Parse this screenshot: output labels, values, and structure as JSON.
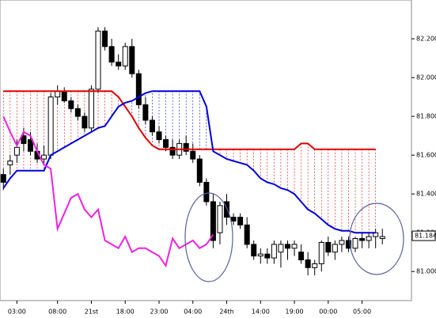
{
  "chart_data": {
    "type": "candlestick",
    "xlim": [
      -0.5,
      60.3
    ],
    "xticks": [
      {
        "value": 2,
        "label": "03:00"
      },
      {
        "value": 8,
        "label": "08:00"
      },
      {
        "value": 13,
        "label": "21st"
      },
      {
        "value": 18,
        "label": "18:00"
      },
      {
        "value": 23,
        "label": "23:00"
      },
      {
        "value": 28,
        "label": "04:00"
      },
      {
        "value": 33,
        "label": "24th"
      },
      {
        "value": 38,
        "label": "14:00"
      },
      {
        "value": 43,
        "label": "19:00"
      },
      {
        "value": 48,
        "label": "00:00"
      },
      {
        "value": 53,
        "label": "05:00"
      }
    ],
    "ylim": [
      80.85,
      82.4
    ],
    "yticks": [
      {
        "value": 81.0,
        "label": "81.000"
      },
      {
        "value": 81.2,
        "label": "81.200"
      },
      {
        "value": 81.4,
        "label": "81.400"
      },
      {
        "value": 81.6,
        "label": "81.600"
      },
      {
        "value": 81.8,
        "label": "81.800"
      },
      {
        "value": 82.0,
        "label": "82.000"
      },
      {
        "value": 82.2,
        "label": "82.200"
      }
    ],
    "current_price": 81.184,
    "up_color": "#ffffff",
    "down_color": "#000000",
    "candles": {
      "open": [
        81.5,
        81.55,
        81.6,
        81.7,
        81.68,
        81.62,
        81.58,
        81.6,
        81.9,
        81.93,
        81.88,
        81.84,
        81.8,
        81.74,
        81.94,
        82.24,
        82.16,
        82.08,
        82.06,
        82.16,
        82.02,
        81.86,
        81.78,
        81.72,
        81.68,
        81.64,
        81.6,
        81.66,
        81.62,
        81.58,
        81.46,
        81.36,
        81.2,
        81.36,
        81.28,
        81.28,
        81.24,
        81.14,
        81.08,
        81.09,
        81.07,
        81.1,
        81.14,
        81.12,
        81.1,
        81.06,
        81.02,
        81.04,
        81.15,
        81.1,
        81.14,
        81.16,
        81.12,
        81.17,
        81.16,
        81.18,
        81.17
      ],
      "high": [
        81.53,
        81.6,
        81.68,
        81.74,
        81.72,
        81.66,
        81.65,
        81.92,
        81.96,
        81.95,
        81.9,
        81.86,
        81.82,
        81.96,
        82.26,
        82.26,
        82.2,
        82.12,
        82.18,
        82.2,
        82.04,
        81.9,
        81.8,
        81.75,
        81.7,
        81.68,
        81.68,
        81.7,
        81.66,
        81.6,
        81.48,
        81.4,
        81.36,
        81.4,
        81.3,
        81.3,
        81.28,
        81.16,
        81.12,
        81.12,
        81.16,
        81.16,
        81.16,
        81.16,
        81.14,
        81.1,
        81.06,
        81.16,
        81.18,
        81.16,
        81.18,
        81.18,
        81.18,
        81.2,
        81.2,
        81.22,
        81.22
      ],
      "low": [
        81.42,
        81.5,
        81.56,
        81.62,
        81.6,
        81.56,
        81.55,
        81.58,
        81.86,
        81.87,
        81.82,
        81.78,
        81.72,
        81.72,
        81.92,
        82.14,
        82.06,
        82.04,
        82.04,
        82.0,
        81.84,
        81.76,
        81.7,
        81.66,
        81.62,
        81.58,
        81.58,
        81.6,
        81.56,
        81.44,
        81.34,
        81.12,
        81.14,
        81.24,
        81.24,
        81.22,
        81.12,
        81.06,
        81.04,
        81.04,
        81.04,
        81.02,
        81.06,
        81.08,
        81.04,
        80.98,
        80.98,
        81.0,
        81.08,
        81.06,
        81.1,
        81.1,
        81.1,
        81.12,
        81.12,
        81.12,
        81.14
      ],
      "close": [
        81.46,
        81.57,
        81.64,
        81.66,
        81.62,
        81.58,
        81.6,
        81.9,
        81.93,
        81.88,
        81.84,
        81.8,
        81.74,
        81.94,
        82.24,
        82.16,
        82.08,
        82.06,
        82.16,
        82.02,
        81.86,
        81.78,
        81.72,
        81.68,
        81.64,
        81.6,
        81.66,
        81.62,
        81.58,
        81.46,
        81.36,
        81.16,
        81.34,
        81.28,
        81.26,
        81.24,
        81.14,
        81.08,
        81.09,
        81.07,
        81.14,
        81.14,
        81.12,
        81.14,
        81.06,
        81.02,
        81.04,
        81.15,
        81.1,
        81.14,
        81.16,
        81.12,
        81.17,
        81.16,
        81.18,
        81.2,
        81.18
      ]
    },
    "lines": [
      {
        "color": "#e00000",
        "values": [
          81.93,
          81.93,
          81.93,
          81.93,
          81.93,
          81.93,
          81.93,
          81.93,
          81.93,
          81.93,
          81.93,
          81.93,
          81.93,
          81.93,
          81.93,
          81.93,
          81.93,
          81.9,
          81.85,
          81.8,
          81.74,
          81.69,
          81.65,
          81.63,
          81.63,
          81.63,
          81.63,
          81.63,
          81.63,
          81.63,
          81.63,
          81.63,
          81.63,
          81.63,
          81.63,
          81.63,
          81.63,
          81.63,
          81.63,
          81.63,
          81.63,
          81.63,
          81.63,
          81.63,
          81.66,
          81.66,
          81.63,
          81.63,
          81.63,
          81.63,
          81.63,
          81.63,
          81.63,
          81.63,
          81.63,
          81.63,
          null
        ]
      },
      {
        "color": "#0000dd",
        "values": [
          81.43,
          81.48,
          81.52,
          81.52,
          81.52,
          81.52,
          81.52,
          81.6,
          81.62,
          81.64,
          81.66,
          81.68,
          81.7,
          81.72,
          81.74,
          81.75,
          81.8,
          81.85,
          81.87,
          81.88,
          81.9,
          81.92,
          81.93,
          81.93,
          81.93,
          81.93,
          81.93,
          81.93,
          81.93,
          81.93,
          81.85,
          81.62,
          81.6,
          81.58,
          81.57,
          81.56,
          81.55,
          81.52,
          81.48,
          81.46,
          81.45,
          81.43,
          81.42,
          81.4,
          81.36,
          81.32,
          81.3,
          81.27,
          81.24,
          81.22,
          81.21,
          81.21,
          81.2,
          81.2,
          81.2,
          81.2,
          null
        ]
      },
      {
        "color": "#ee22dd",
        "values": [
          81.8,
          81.72,
          81.65,
          81.72,
          81.7,
          81.62,
          81.55,
          81.53,
          81.22,
          81.3,
          81.38,
          81.4,
          81.32,
          81.28,
          81.32,
          81.16,
          81.14,
          81.12,
          81.18,
          81.1,
          81.12,
          81.12,
          81.1,
          81.08,
          81.03,
          81.17,
          81.12,
          81.14,
          81.16,
          81.12,
          81.14,
          81.19,
          null,
          null,
          null,
          null,
          null,
          null,
          null,
          null,
          null,
          null,
          null,
          null,
          null,
          null,
          null,
          null,
          null,
          null,
          null,
          null,
          null,
          null,
          null,
          null,
          null
        ]
      }
    ]
  }
}
